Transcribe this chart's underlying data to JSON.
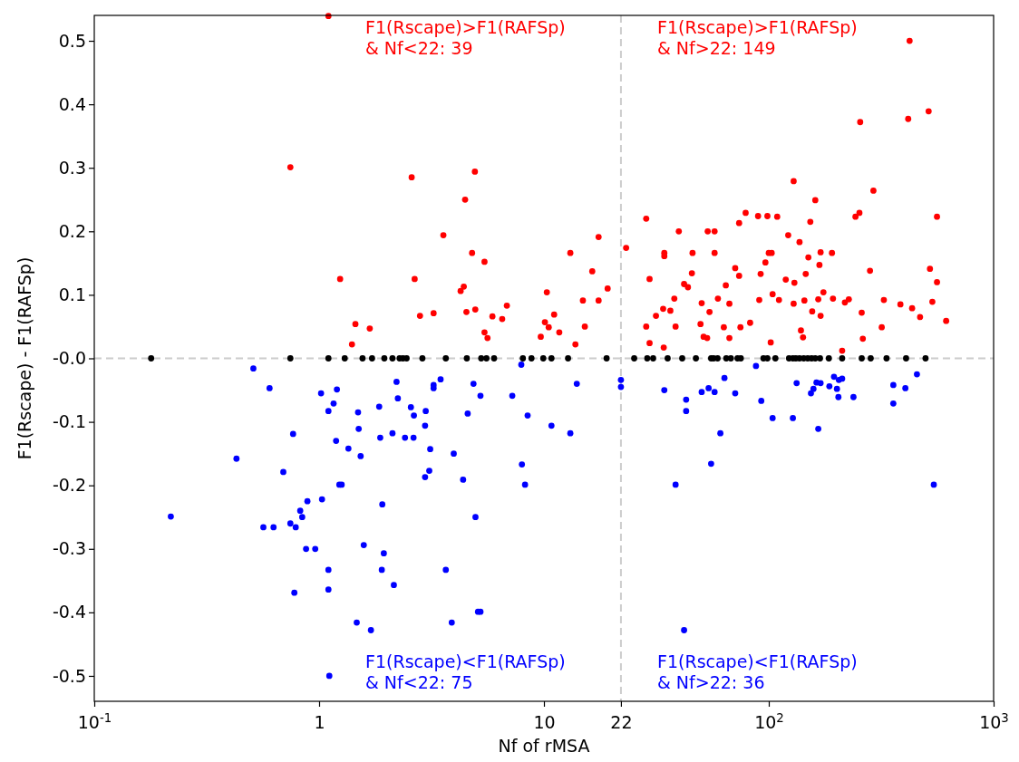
{
  "chart_data": {
    "type": "scatter",
    "xlabel": "Nf of rMSA",
    "ylabel": "F1(Rscape) - F1(RAFSp)",
    "log": "x",
    "marker": "circle",
    "grid": false,
    "xlim": [
      0.1,
      1000
    ],
    "xticks": [
      {
        "value": 0.1,
        "label": "10$^{-1}$"
      },
      1,
      10,
      22,
      {
        "value": 100,
        "label": "10$^{2}$"
      },
      {
        "value": 1000,
        "label": "10$^{3}$"
      }
    ],
    "ylim": [
      -0.54,
      0.54
    ],
    "yticks": [
      -0.5,
      -0.4,
      -0.3,
      -0.2,
      -0.1,
      {
        "value": 0,
        "label": "-0.0"
      },
      0.1,
      0.2,
      0.3,
      0.4,
      0.5
    ],
    "ref_lines": [
      {
        "axis": "x",
        "value": 22,
        "color": "#cccccc",
        "line_style": "dashed"
      },
      {
        "axis": "y",
        "value": 0,
        "color": "#cccccc",
        "line_style": "dashed"
      }
    ],
    "annotations": [
      "F1(Rscape)>F1(RAFSp)\n& Nf<22: 39",
      "F1(Rscape)>F1(RAFSp)\n& Nf>22: 149",
      "F1(Rscape)<F1(RAFSp)\n& Nf<22: 75",
      "F1(Rscape)<F1(RAFSp)\n& Nf>22: 36"
    ],
    "series": [
      {
        "color": "#ff0000",
        "x": [
          1.1,
          0.745,
          1.24,
          1.45,
          1.4,
          1.68,
          2.58,
          2.66,
          2.81,
          3.23,
          3.57,
          4.46,
          4.93,
          4.79,
          5.44,
          4.26,
          4.4,
          4.52,
          4.95,
          5.44,
          5.61,
          5.9,
          6.84,
          6.52,
          9.68,
          10.3,
          10.1,
          10.5,
          11.1,
          11.7,
          13.1,
          13.8,
          14.9,
          15.2,
          16.4,
          17.5,
          17.5,
          19.2,
          23.2,
          28.5,
          28.5,
          29.5,
          29.5,
          31.5,
          33.9,
          34.3,
          34.3,
          34.1,
          36.5,
          38,
          38.5,
          39.8,
          42,
          43.7,
          45.5,
          45.8,
          49.7,
          50.3,
          51.3,
          53.5,
          57.4,
          53.2,
          54.5,
          57.4,
          59.4,
          63.1,
          64.4,
          66.8,
          66.8,
          70.9,
          73.8,
          73.8,
          74.8,
          78.9,
          82.6,
          89.6,
          90.7,
          92,
          96.6,
          98.6,
          100,
          103,
          102,
          109,
          104,
          111,
          119,
          122,
          129,
          130,
          129,
          137,
          139,
          142,
          144,
          146,
          150,
          153,
          156,
          161,
          166,
          168,
          170,
          170,
          175,
          191,
          193,
          212,
          218,
          227,
          243,
          253,
          255,
          259,
          262,
          282,
          292,
          325,
          318,
          385,
          417,
          423,
          434,
          471,
          514,
          521,
          534,
          560,
          560,
          615
        ],
        "values": [
          0.539,
          0.301,
          0.125,
          0.054,
          0.022,
          0.047,
          0.285,
          0.125,
          0.067,
          0.071,
          0.194,
          0.25,
          0.294,
          0.166,
          0.152,
          0.106,
          0.113,
          0.073,
          0.077,
          0.041,
          0.032,
          0.066,
          0.083,
          0.062,
          0.034,
          0.104,
          0.057,
          0.049,
          0.069,
          0.041,
          0.166,
          0.022,
          0.091,
          0.05,
          0.137,
          0.191,
          0.091,
          0.11,
          0.174,
          0.22,
          0.05,
          0.125,
          0.024,
          0.067,
          0.078,
          0.166,
          0.161,
          0.017,
          0.075,
          0.094,
          0.05,
          0.2,
          0.117,
          0.112,
          0.134,
          0.166,
          0.054,
          0.087,
          0.034,
          0.2,
          0.2,
          0.032,
          0.073,
          0.166,
          0.094,
          0.049,
          0.115,
          0.086,
          0.032,
          0.142,
          0.13,
          0.213,
          0.049,
          0.229,
          0.056,
          0.224,
          0.092,
          0.133,
          0.151,
          0.224,
          0.166,
          0.166,
          0.025,
          0.223,
          0.101,
          0.092,
          0.124,
          0.194,
          0.279,
          0.119,
          0.086,
          0.183,
          0.044,
          0.033,
          0.091,
          0.133,
          0.159,
          0.215,
          0.074,
          0.249,
          0.093,
          0.147,
          0.167,
          0.067,
          0.104,
          0.166,
          0.094,
          0.012,
          0.088,
          0.093,
          0.223,
          0.229,
          0.372,
          0.072,
          0.031,
          0.138,
          0.264,
          0.092,
          0.049,
          0.085,
          0.377,
          0.5,
          0.079,
          0.065,
          0.389,
          0.141,
          0.089,
          0.223,
          0.12,
          0.059
        ]
      },
      {
        "color": "#0000ff",
        "x": [
          0.219,
          0.429,
          0.51,
          0.565,
          0.627,
          0.602,
          0.693,
          0.745,
          0.766,
          0.787,
          0.776,
          0.824,
          0.841,
          0.887,
          0.875,
          0.961,
          1.02,
          1.03,
          1.1,
          1.1,
          1.1,
          1.11,
          1.16,
          1.2,
          1.19,
          1.23,
          1.26,
          1.35,
          1.49,
          1.5,
          1.53,
          1.58,
          1.47,
          1.7,
          1.85,
          1.87,
          1.91,
          1.9,
          1.94,
          2.12,
          2.15,
          2.21,
          2.24,
          2.41,
          2.56,
          2.63,
          2.64,
          2.98,
          2.96,
          2.96,
          3.09,
          3.12,
          3.23,
          3.23,
          3.47,
          3.66,
          3.89,
          3.97,
          4.37,
          4.58,
          4.86,
          4.96,
          5.09,
          5.22,
          5.22,
          7.23,
          7.93,
          7.98,
          8.24,
          8.46,
          10.8,
          13.1,
          14,
          22,
          22,
          34.3,
          38.5,
          42,
          42.9,
          42.9,
          50.3,
          54,
          55.4,
          57.4,
          60.9,
          63.5,
          70.9,
          87.7,
          92.6,
          104,
          133,
          128,
          154,
          158,
          163,
          166,
          170,
          186,
          195,
          201,
          204,
          205,
          212,
          238,
          358,
          358,
          405,
          456,
          542
        ],
        "values": [
          -0.249,
          -0.158,
          -0.016,
          -0.266,
          -0.266,
          -0.047,
          -0.179,
          -0.26,
          -0.119,
          -0.266,
          -0.369,
          -0.24,
          -0.25,
          -0.225,
          -0.3,
          -0.3,
          -0.055,
          -0.222,
          -0.083,
          -0.333,
          -0.364,
          -0.5,
          -0.071,
          -0.049,
          -0.13,
          -0.199,
          -0.199,
          -0.142,
          -0.085,
          -0.111,
          -0.154,
          -0.294,
          -0.416,
          -0.428,
          -0.076,
          -0.125,
          -0.23,
          -0.333,
          -0.307,
          -0.118,
          -0.357,
          -0.037,
          -0.063,
          -0.125,
          -0.077,
          -0.125,
          -0.09,
          -0.083,
          -0.106,
          -0.187,
          -0.177,
          -0.143,
          -0.042,
          -0.047,
          -0.033,
          -0.333,
          -0.416,
          -0.15,
          -0.191,
          -0.087,
          -0.04,
          -0.25,
          -0.399,
          -0.399,
          -0.059,
          -0.059,
          -0.01,
          -0.167,
          -0.199,
          -0.09,
          -0.106,
          -0.118,
          -0.04,
          -0.034,
          -0.045,
          -0.05,
          -0.199,
          -0.428,
          -0.065,
          -0.083,
          -0.053,
          -0.047,
          -0.166,
          -0.053,
          -0.118,
          -0.031,
          -0.055,
          -0.012,
          -0.067,
          -0.094,
          -0.039,
          -0.094,
          -0.055,
          -0.048,
          -0.038,
          -0.111,
          -0.039,
          -0.044,
          -0.029,
          -0.048,
          -0.061,
          -0.034,
          -0.032,
          -0.061,
          -0.042,
          -0.071,
          -0.047,
          -0.025,
          -0.199
        ]
      },
      {
        "color": "#000000",
        "x": [
          0.179,
          0.745,
          1.1,
          1.3,
          1.56,
          1.72,
          1.95,
          2.12,
          2.28,
          2.36,
          2.45,
          2.88,
          3.66,
          4.54,
          5.26,
          5.55,
          6,
          8.06,
          8.8,
          9.93,
          10.8,
          12.8,
          19,
          25.2,
          28.8,
          30.6,
          35.5,
          41.2,
          47.4,
          55.4,
          56.8,
          59.2,
          64.7,
          67.8,
          72.6,
          75.1,
          94.7,
          98.6,
          107,
          123,
          128,
          132,
          137,
          143,
          149,
          155,
          161,
          169,
          185,
          212,
          259,
          284,
          334,
          408,
          498
        ],
        "values": [
          0,
          0,
          0,
          0,
          0,
          0,
          0,
          0,
          0,
          0,
          0,
          0,
          0,
          0,
          0,
          0,
          0,
          0,
          0,
          0,
          0,
          0,
          0,
          0,
          0,
          0,
          0,
          0,
          0,
          0,
          0,
          0,
          0,
          0,
          0,
          0,
          0,
          0,
          0,
          0,
          0,
          0,
          0,
          0,
          0,
          0,
          0,
          0,
          0,
          0,
          0,
          0,
          0,
          0,
          0
        ]
      }
    ]
  }
}
